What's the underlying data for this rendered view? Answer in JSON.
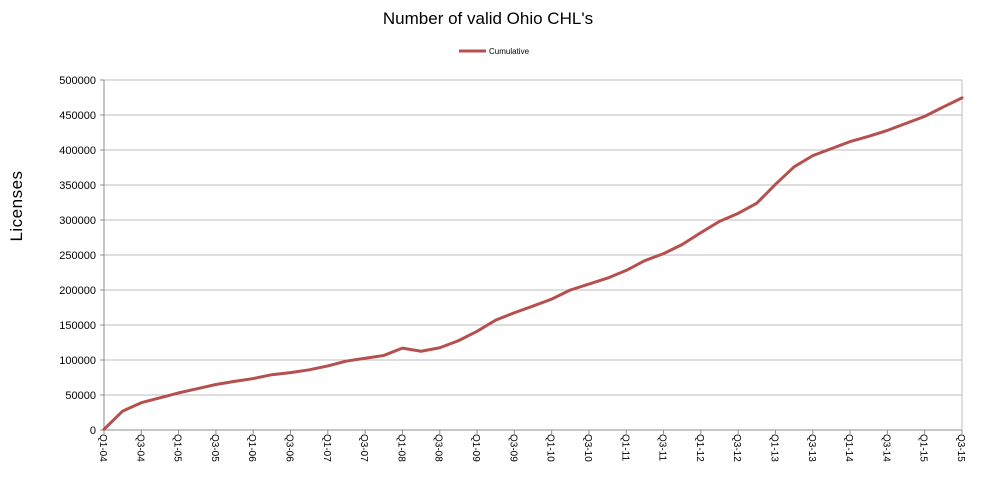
{
  "chart_data": {
    "type": "line",
    "title": "Number of valid Ohio CHL's",
    "xlabel": "",
    "ylabel": "Licenses",
    "ylim": [
      0,
      500000
    ],
    "yticks": [
      0,
      50000,
      100000,
      150000,
      200000,
      250000,
      300000,
      350000,
      400000,
      450000,
      500000
    ],
    "grid": true,
    "legend_position": "top-center",
    "line_color": "#b5504e",
    "x": [
      "Q1-04",
      "Q2-04",
      "Q3-04",
      "Q4-04",
      "Q1-05",
      "Q2-05",
      "Q3-05",
      "Q4-05",
      "Q1-06",
      "Q2-06",
      "Q3-06",
      "Q4-06",
      "Q1-07",
      "Q2-07",
      "Q3-07",
      "Q4-07",
      "Q1-08",
      "Q2-08",
      "Q3-08",
      "Q4-08",
      "Q1-09",
      "Q2-09",
      "Q3-09",
      "Q4-09",
      "Q1-10",
      "Q2-10",
      "Q3-10",
      "Q4-10",
      "Q1-11",
      "Q2-11",
      "Q3-11",
      "Q4-11",
      "Q1-12",
      "Q2-12",
      "Q3-12",
      "Q4-12",
      "Q1-13",
      "Q2-13",
      "Q3-13",
      "Q4-13",
      "Q1-14",
      "Q2-14",
      "Q3-14",
      "Q4-14",
      "Q1-15",
      "Q2-15",
      "Q3-15"
    ],
    "x_tick_labels": [
      "Q1-04",
      "Q3-04",
      "Q1-05",
      "Q3-05",
      "Q1-06",
      "Q3-06",
      "Q1-07",
      "Q3-07",
      "Q1-08",
      "Q3-08",
      "Q1-09",
      "Q3-09",
      "Q1-10",
      "Q3-10",
      "Q1-11",
      "Q3-11",
      "Q1-12",
      "Q3-12",
      "Q1-13",
      "Q3-13",
      "Q1-14",
      "Q3-14",
      "Q1-15",
      "Q3-15"
    ],
    "series": [
      {
        "name": "Cumulative",
        "values": [
          1000,
          27000,
          39000,
          46000,
          53000,
          59000,
          65000,
          69500,
          73500,
          79000,
          82000,
          86000,
          91500,
          98500,
          102500,
          106500,
          117000,
          112500,
          117500,
          127500,
          141000,
          157000,
          167500,
          177000,
          187000,
          200000,
          208500,
          217000,
          228000,
          242000,
          252000,
          265000,
          282000,
          298000,
          309500,
          324000,
          351000,
          376000,
          392000,
          402000,
          412000,
          419500,
          428000,
          438000,
          448000,
          461500,
          474500
        ]
      }
    ]
  }
}
